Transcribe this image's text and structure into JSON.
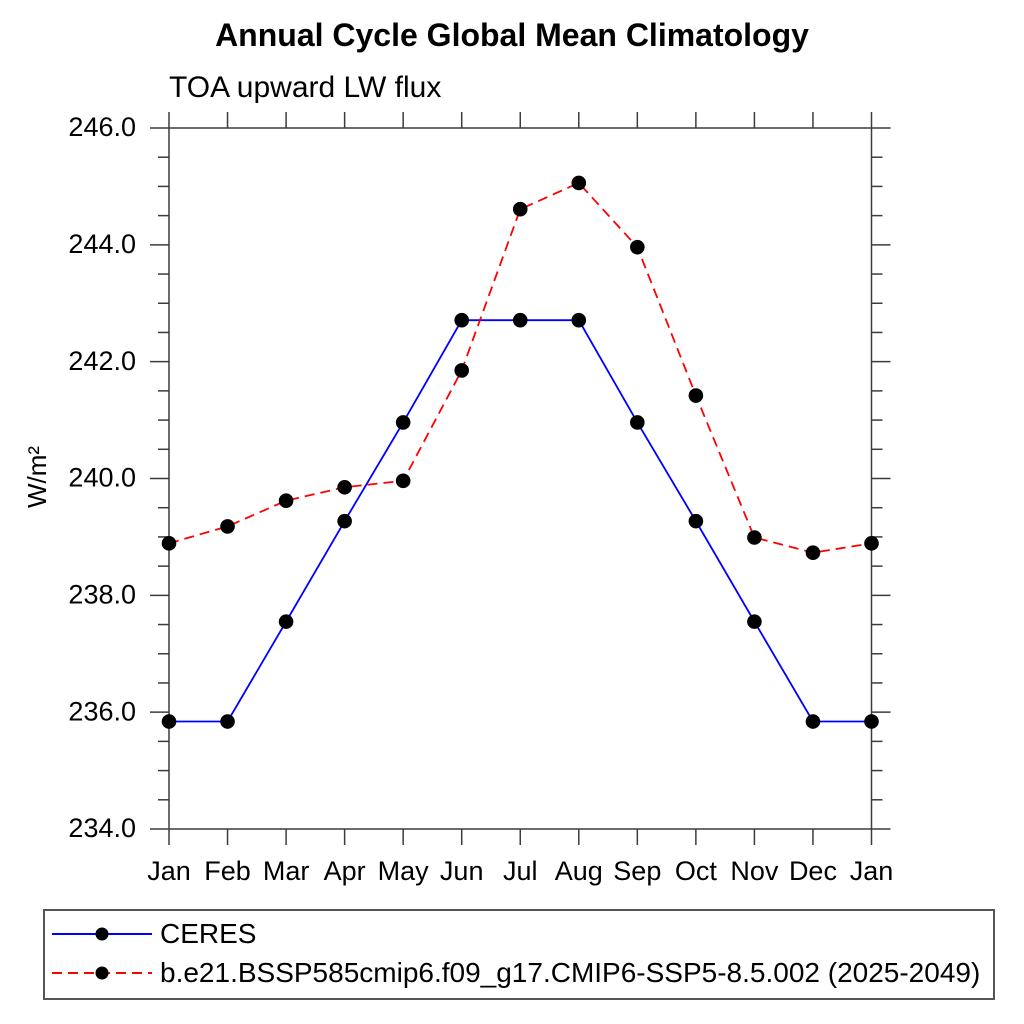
{
  "chart_data": {
    "type": "line",
    "title": "Annual Cycle Global Mean Climatology",
    "subtitle": "TOA upward LW flux",
    "ylabel": "W/m²",
    "ylim": [
      234.0,
      246.0
    ],
    "ytick_major_interval": 2.0,
    "ytick_minor_interval": 0.5,
    "ytick_labels": [
      "246.0",
      "244.0",
      "242.0",
      "240.0",
      "238.0",
      "236.0",
      "234.0"
    ],
    "x_categories": [
      "Jan",
      "Feb",
      "Mar",
      "Apr",
      "May",
      "Jun",
      "Jul",
      "Aug",
      "Sep",
      "Oct",
      "Nov",
      "Dec",
      "Jan"
    ],
    "grid": false,
    "legend_position": "bottom",
    "marker": {
      "shape": "circle",
      "color": "#000000"
    },
    "series": [
      {
        "name": "CERES",
        "color": "#0000ff",
        "line_style": "solid",
        "values": [
          235.84,
          235.84,
          237.55,
          239.27,
          240.96,
          242.71,
          242.71,
          242.71,
          240.96,
          239.27,
          237.55,
          235.84,
          235.84
        ]
      },
      {
        "name": "b.e21.BSSP585cmip6.f09_g17.CMIP6-SSP5-8.5.002 (2025-2049)",
        "color": "#ff0000",
        "line_style": "dashed",
        "values": [
          238.89,
          239.18,
          239.62,
          239.85,
          239.96,
          241.85,
          244.61,
          245.06,
          243.96,
          241.42,
          238.99,
          238.73,
          238.89
        ]
      }
    ]
  }
}
